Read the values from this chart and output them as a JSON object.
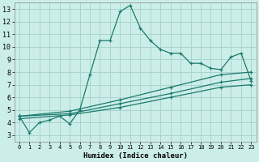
{
  "xlabel": "Humidex (Indice chaleur)",
  "bg_color": "#cceee8",
  "grid_color": "#aad4ce",
  "line_color": "#1a7a6e",
  "xlim": [
    -0.5,
    23.5
  ],
  "ylim": [
    2.5,
    13.5
  ],
  "xticks": [
    0,
    1,
    2,
    3,
    4,
    5,
    6,
    7,
    8,
    9,
    10,
    11,
    12,
    13,
    14,
    15,
    16,
    17,
    18,
    19,
    20,
    21,
    22,
    23
  ],
  "yticks": [
    3,
    4,
    5,
    6,
    7,
    8,
    9,
    10,
    11,
    12,
    13
  ],
  "series1_x": [
    0,
    1,
    2,
    3,
    4,
    5,
    6,
    7,
    8,
    9,
    10,
    11,
    12,
    13,
    14,
    15,
    16,
    17,
    18,
    19,
    20,
    21,
    22,
    23
  ],
  "series1_y": [
    4.5,
    3.2,
    4.0,
    4.2,
    4.5,
    3.9,
    5.0,
    7.8,
    10.5,
    10.5,
    12.8,
    13.3,
    11.5,
    10.5,
    9.8,
    9.5,
    9.5,
    8.7,
    8.7,
    8.3,
    8.2,
    9.2,
    9.5,
    7.3
  ],
  "series2_x": [
    0,
    5,
    10,
    15,
    20,
    23
  ],
  "series2_y": [
    4.5,
    4.7,
    5.5,
    6.3,
    7.2,
    7.5
  ],
  "series3_x": [
    0,
    5,
    10,
    15,
    20,
    23
  ],
  "series3_y": [
    4.5,
    4.9,
    5.8,
    6.8,
    7.8,
    8.0
  ],
  "series4_x": [
    0,
    5,
    10,
    15,
    20,
    23
  ],
  "series4_y": [
    4.3,
    4.6,
    5.2,
    6.0,
    6.8,
    7.0
  ]
}
